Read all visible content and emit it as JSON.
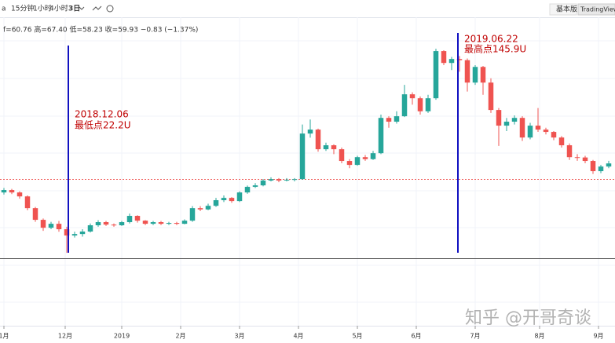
{
  "toolbar": {
    "items": [
      "a",
      "15分钟",
      "1小时",
      "4小时",
      "3日"
    ],
    "right": [
      "基本版",
      "TradingView"
    ]
  },
  "watermark": "知乎 @开哥奇谈",
  "chart_data": {
    "type": "candlestick",
    "info": "f=60.76 高=67.40 低=58.23 收=59.93 −0.83 (−1.37%)",
    "annotations": [
      {
        "date": "2018.12.06",
        "text": "最低点22.2U"
      },
      {
        "date": "2019.06.22",
        "text": "最高点145.9U"
      }
    ],
    "up_color": "#26a69a",
    "down_color": "#ef5350",
    "xlim": [
      -0.5,
      77.8
    ],
    "ylim": [
      -22,
      165
    ],
    "xticks": [
      {
        "value": 0,
        "label": "1月"
      },
      {
        "value": 7.8,
        "label": "12月"
      },
      {
        "value": 15,
        "label": "2019"
      },
      {
        "value": 22.5,
        "label": "2月"
      },
      {
        "value": 30,
        "label": "3月"
      },
      {
        "value": 37.5,
        "label": "4月"
      },
      {
        "value": 45,
        "label": "5月"
      },
      {
        "value": 52.5,
        "label": "6月"
      },
      {
        "value": 60,
        "label": "7月"
      },
      {
        "value": 68.2,
        "label": "8月"
      },
      {
        "value": 75.7,
        "label": "9月"
      }
    ],
    "grid": true,
    "open": [
      58.8,
      60.3,
      58.8,
      56.4,
      49.3,
      42.2,
      37.4,
      39.8,
      36.5,
      32.7,
      33.6,
      35.1,
      38.9,
      40.8,
      39.3,
      38.9,
      40.8,
      44.6,
      41.7,
      39.8,
      40.8,
      39.8,
      40.3,
      39.8,
      41.7,
      49.3,
      48.5,
      50.7,
      54.1,
      55.5,
      53.6,
      58.8,
      62.2,
      63.1,
      66.0,
      66.9,
      66.0,
      66.5,
      66.9,
      94.5,
      96.9,
      85.0,
      87.4,
      85.0,
      77.9,
      75.5,
      80.2,
      79.0,
      82.6,
      104.0,
      101.7,
      105.0,
      118.3,
      115.9,
      108.0,
      115.9,
      144.5,
      137.3,
      139.7,
      139.0,
      125.4,
      134.9,
      125.4,
      108.8,
      99.3,
      101.7,
      104.0,
      92.1,
      99.3,
      96.9,
      95.5,
      92.1,
      87.4,
      80.2,
      80.0,
      77.9,
      71.7,
      74.5
    ],
    "high": [
      61.5,
      61.0,
      59.5,
      57.0,
      50.0,
      43.0,
      41.0,
      41.5,
      38.0,
      35.0,
      36.5,
      40.0,
      42.0,
      41.5,
      40.0,
      41.5,
      46.0,
      45.0,
      42.0,
      41.5,
      41.5,
      41.0,
      41.0,
      42.5,
      50.5,
      50.5,
      52.0,
      55.5,
      57.0,
      56.0,
      59.5,
      63.0,
      64.5,
      67.0,
      68.0,
      67.5,
      67.5,
      67.5,
      100.0,
      103.0,
      97.5,
      89.0,
      88.0,
      86.0,
      79.0,
      81.0,
      81.5,
      84.0,
      106.0,
      105.0,
      108.0,
      124.0,
      119.5,
      117.0,
      118.0,
      145.9,
      145.0,
      141.0,
      141.5,
      140.0,
      136.0,
      135.5,
      128.0,
      110.0,
      104.0,
      105.5,
      105.0,
      101.0,
      110.0,
      98.0,
      96.0,
      93.0,
      88.5,
      82.0,
      81.0,
      78.5,
      75.5,
      78.0
    ],
    "low": [
      57.5,
      57.8,
      55.0,
      48.0,
      41.0,
      35.5,
      36.5,
      35.0,
      22.2,
      31.5,
      32.0,
      34.5,
      38.0,
      38.5,
      38.0,
      38.5,
      40.0,
      40.5,
      39.0,
      39.0,
      39.0,
      39.0,
      39.0,
      39.5,
      41.0,
      47.5,
      48.0,
      50.0,
      53.0,
      52.5,
      53.0,
      58.0,
      61.5,
      62.5,
      65.5,
      65.0,
      65.5,
      65.5,
      66.5,
      92.0,
      83.5,
      84.0,
      82.0,
      76.5,
      73.5,
      75.0,
      78.0,
      78.5,
      82.0,
      98.0,
      100.5,
      104.5,
      112.0,
      106.0,
      107.0,
      115.0,
      136.0,
      133.0,
      132.0,
      120.0,
      124.0,
      118.0,
      107.0,
      87.0,
      96.0,
      100.0,
      90.0,
      91.0,
      95.5,
      94.0,
      90.5,
      86.0,
      78.5,
      78.0,
      76.5,
      70.0,
      70.5,
      73.5
    ],
    "close": [
      60.3,
      58.8,
      56.4,
      49.3,
      42.2,
      37.4,
      39.8,
      36.5,
      32.7,
      33.6,
      35.1,
      38.9,
      40.8,
      39.3,
      38.9,
      40.8,
      44.6,
      41.7,
      39.8,
      40.8,
      39.8,
      40.3,
      39.8,
      41.7,
      49.3,
      48.5,
      50.7,
      54.1,
      55.5,
      53.6,
      58.8,
      62.2,
      63.1,
      66.0,
      66.9,
      66.0,
      66.5,
      66.9,
      94.5,
      96.9,
      85.0,
      87.4,
      85.0,
      77.9,
      75.5,
      80.2,
      79.0,
      82.6,
      104.0,
      101.7,
      105.0,
      118.3,
      115.9,
      108.0,
      115.9,
      144.5,
      137.3,
      139.7,
      139.0,
      125.4,
      134.9,
      125.4,
      108.8,
      99.3,
      101.7,
      104.0,
      92.1,
      99.3,
      96.9,
      95.5,
      92.1,
      87.4,
      80.2,
      80.0,
      77.9,
      71.7,
      74.5,
      76.4
    ]
  }
}
